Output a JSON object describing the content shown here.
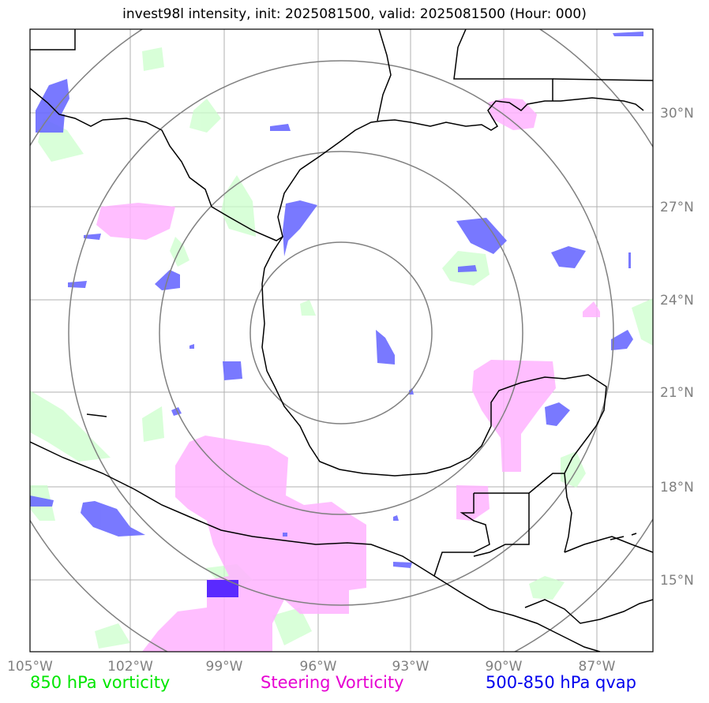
{
  "title": "invest98l intensity, init: 2025081500, valid: 2025081500 (Hour: 000)",
  "axes": {
    "lon_ticks": [
      "105°W",
      "102°W",
      "99°W",
      "96°W",
      "93°W",
      "90°W",
      "87°W"
    ],
    "lat_ticks": [
      "30°N",
      "27°N",
      "24°N",
      "21°N",
      "18°N",
      "15°N"
    ]
  },
  "legend": {
    "item_850": "850 hPa vorticity",
    "item_steering": "Steering Vorticity",
    "item_qvap": "500-850 hPa qvap"
  },
  "colors": {
    "vorticity_850": "#00e600",
    "steering_vorticity": "#e600d2",
    "qvap": "#0000ee",
    "range_rings": "#808080",
    "coastline": "#000000"
  },
  "map": {
    "center_approx": "95.5°W, 23°N",
    "lon_range": [
      "105.0°W",
      "85.0°W"
    ],
    "lat_range": [
      "12.8°N",
      "32.8°N"
    ],
    "range_rings_count": 4
  }
}
